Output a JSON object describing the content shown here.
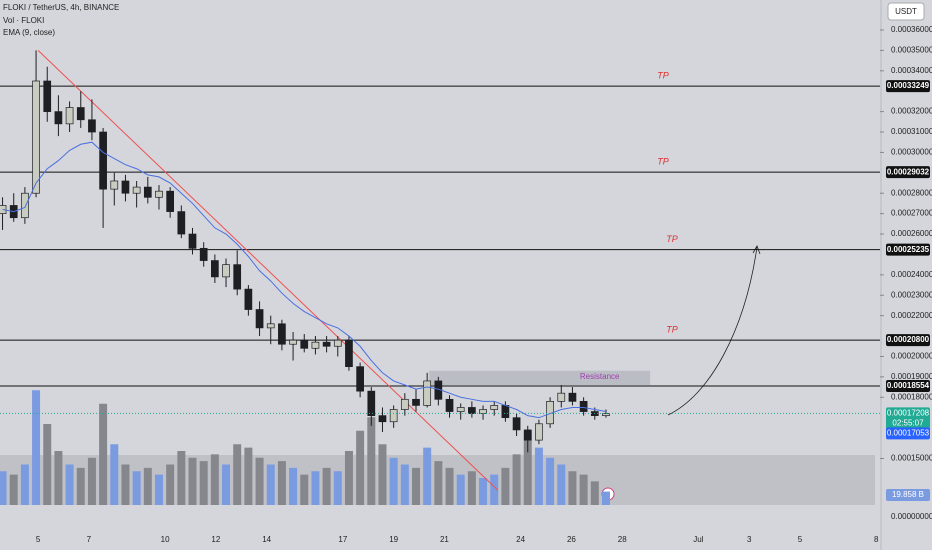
{
  "chart_data": {
    "type": "candlestick",
    "title": "FLOKI / TetherUS, 4h, BINANCE",
    "indicators": [
      "Vol · FLOKI",
      "EMA (9, close)"
    ],
    "currency": "USDT",
    "x": [
      3.6,
      4.04,
      4.48,
      4.92,
      5.36,
      5.8,
      6.24,
      6.68,
      7.12,
      7.56,
      8.0,
      8.44,
      8.88,
      9.32,
      9.76,
      10.2,
      10.64,
      11.08,
      11.52,
      11.96,
      12.4,
      12.84,
      13.28,
      13.72,
      14.16,
      14.6,
      15.04,
      15.48,
      15.92,
      16.36,
      16.8,
      17.24,
      17.68,
      18.12,
      18.56,
      19.0,
      19.44,
      19.88,
      20.32,
      20.76,
      21.2,
      21.64,
      22.08,
      22.52,
      22.96,
      23.4,
      23.84,
      24.28,
      24.72,
      25.16,
      25.6,
      26.04,
      26.48,
      26.92,
      27.36
    ],
    "open": [
      0.00027,
      0.000274,
      0.000268,
      0.00028,
      0.000335,
      0.00032,
      0.000314,
      0.000322,
      0.000316,
      0.00031,
      0.000282,
      0.000286,
      0.00028,
      0.000283,
      0.000278,
      0.000281,
      0.000271,
      0.00026,
      0.000253,
      0.000247,
      0.000239,
      0.000245,
      0.000233,
      0.000223,
      0.000214,
      0.000216,
      0.000206,
      0.000208,
      0.000204,
      0.000207,
      0.000205,
      0.000208,
      0.000195,
      0.000183,
      0.000171,
      0.000168,
      0.000174,
      0.000179,
      0.000176,
      0.000188,
      0.000179,
      0.000173,
      0.000175,
      0.000172,
      0.000174,
      0.000176,
      0.00017,
      0.000164,
      0.000159,
      0.000167,
      0.000178,
      0.000182,
      0.000178,
      0.000173,
      0.000171
    ],
    "high": [
      0.000278,
      0.00028,
      0.000283,
      0.00035,
      0.000342,
      0.000328,
      0.000325,
      0.00033,
      0.000326,
      0.000312,
      0.00029,
      0.000289,
      0.000286,
      0.000288,
      0.000284,
      0.000283,
      0.000274,
      0.000263,
      0.000256,
      0.00025,
      0.000248,
      0.000252,
      0.000235,
      0.000227,
      0.00022,
      0.000218,
      0.000212,
      0.000211,
      0.00021,
      0.00021,
      0.00021,
      0.00021,
      0.000197,
      0.000185,
      0.000175,
      0.000176,
      0.000182,
      0.000184,
      0.000192,
      0.00019,
      0.000181,
      0.000177,
      0.000178,
      0.000176,
      0.000178,
      0.000178,
      0.000172,
      0.000166,
      0.000169,
      0.00018,
      0.000186,
      0.000185,
      0.00018,
      0.000175,
      0.000174
    ],
    "low": [
      0.000262,
      0.000266,
      0.000265,
      0.000278,
      0.000315,
      0.000308,
      0.00031,
      0.000312,
      0.000306,
      0.000263,
      0.000274,
      0.000276,
      0.000273,
      0.000275,
      0.000272,
      0.000268,
      0.000258,
      0.00025,
      0.000244,
      0.000236,
      0.000234,
      0.00023,
      0.00022,
      0.00021,
      0.000206,
      0.000203,
      0.000198,
      0.000202,
      0.000201,
      0.000202,
      0.0002,
      0.000193,
      0.00018,
      0.000166,
      0.000163,
      0.000165,
      0.000171,
      0.000173,
      0.000175,
      0.000176,
      0.00017,
      0.000169,
      0.00017,
      0.000169,
      0.000171,
      0.000168,
      0.000161,
      0.000153,
      0.000157,
      0.000165,
      0.000175,
      0.000176,
      0.000171,
      0.000169,
      0.00017
    ],
    "close": [
      0.000274,
      0.000268,
      0.00028,
      0.000335,
      0.00032,
      0.000314,
      0.000322,
      0.000316,
      0.00031,
      0.000282,
      0.000286,
      0.00028,
      0.000283,
      0.000278,
      0.000281,
      0.000271,
      0.00026,
      0.000253,
      0.000247,
      0.000239,
      0.000245,
      0.000233,
      0.000223,
      0.000214,
      0.000216,
      0.000206,
      0.000208,
      0.000204,
      0.000207,
      0.000205,
      0.000208,
      0.000195,
      0.000183,
      0.000171,
      0.000168,
      0.000174,
      0.000179,
      0.000176,
      0.000188,
      0.000179,
      0.000173,
      0.000175,
      0.000172,
      0.000174,
      0.000176,
      0.00017,
      0.000164,
      0.000159,
      0.000167,
      0.000178,
      0.000182,
      0.000178,
      0.000173,
      0.000171,
      0.000172
    ],
    "ema": [
      0.000272,
      0.000271,
      0.000273,
      0.000285,
      0.000292,
      0.000296,
      0.000301,
      0.000304,
      0.000305,
      0.0003,
      0.000297,
      0.000294,
      0.000292,
      0.000289,
      0.000288,
      0.000285,
      0.00028,
      0.000275,
      0.000269,
      0.000263,
      0.00026,
      0.000255,
      0.000249,
      0.000242,
      0.000237,
      0.000231,
      0.000226,
      0.000222,
      0.000219,
      0.000216,
      0.000214,
      0.00021,
      0.000205,
      0.000198,
      0.000192,
      0.000188,
      0.000186,
      0.000184,
      0.000185,
      0.000184,
      0.000182,
      0.00018,
      0.000179,
      0.000178,
      0.000178,
      0.000176,
      0.000174,
      0.000171,
      0.00017,
      0.000172,
      0.000174,
      0.000175,
      0.000175,
      0.000174,
      0.000173
    ],
    "volume": [
      50,
      45,
      60,
      170,
      120,
      80,
      60,
      55,
      70,
      150,
      90,
      60,
      50,
      55,
      45,
      60,
      80,
      70,
      65,
      75,
      60,
      90,
      85,
      70,
      60,
      65,
      55,
      45,
      50,
      55,
      50,
      80,
      110,
      130,
      90,
      70,
      60,
      55,
      85,
      65,
      55,
      45,
      50,
      40,
      45,
      55,
      75,
      110,
      85,
      70,
      60,
      50,
      45,
      35,
      19.858
    ],
    "volume_ylim": [
      0,
      200
    ],
    "volume_marker": {
      "value": 19.858,
      "label": "19.858 B"
    },
    "bottom_label": "0.00000000",
    "up_color": "#c9ccc0",
    "down_color": "#1e1f22",
    "volume_up_color": "#7b9be0",
    "volume_down_color": "#85878c",
    "ema_color": "#4a6fe0",
    "trendline_color": "#f05050",
    "xlim": [
      3.5,
      38.15
    ],
    "ylim": [
      0.0001272,
      0.0003747
    ],
    "xticks": [
      5,
      7,
      10,
      12,
      14,
      17,
      19,
      21,
      24,
      26,
      28,
      {
        "value": 31,
        "label": "Jul"
      },
      {
        "value": 33,
        "label": "3"
      },
      {
        "value": 35,
        "label": "5"
      },
      {
        "value": 38,
        "label": "8"
      }
    ],
    "yticks": [
      {
        "value": 0.00036,
        "label": "0.00036000"
      },
      {
        "value": 0.00035,
        "label": "0.00035000"
      },
      {
        "value": 0.00034,
        "label": "0.00034000"
      },
      {
        "value": 0.00032,
        "label": "0.00032000"
      },
      {
        "value": 0.00031,
        "label": "0.00031000"
      },
      {
        "value": 0.0003,
        "label": "0.00030000"
      },
      {
        "value": 0.00028,
        "label": "0.00028000"
      },
      {
        "value": 0.00027,
        "label": "0.00027000"
      },
      {
        "value": 0.00026,
        "label": "0.00026000"
      },
      {
        "value": 0.00024,
        "label": "0.00024000"
      },
      {
        "value": 0.00023,
        "label": "0.00023000"
      },
      {
        "value": 0.00022,
        "label": "0.00022000"
      },
      {
        "value": 0.0002,
        "label": "0.00020000"
      },
      {
        "value": 0.00019,
        "label": "0.00019000"
      },
      {
        "value": 0.00018,
        "label": "0.00018000"
      },
      {
        "value": 0.00015,
        "label": "0.00015000"
      }
    ],
    "levels": [
      {
        "value": 0.00033249,
        "label": "0.00033249"
      },
      {
        "value": 0.00029032,
        "label": "0.00029032"
      },
      {
        "value": 0.00025235,
        "label": "0.00025235"
      },
      {
        "value": 0.000208,
        "label": "0.00020800"
      },
      {
        "value": 0.00018554,
        "label": "0.00018554"
      }
    ],
    "tp_labels": [
      "TP",
      "TP",
      "TP",
      "TP"
    ],
    "resistance": {
      "label": "Resistance",
      "x": [
        20.4,
        29.1
      ],
      "y": [
        0.000186,
        0.000193
      ]
    },
    "trendline": {
      "x": [
        5.0,
        23.1
      ],
      "y": [
        0.00035,
        0.0001345
      ]
    },
    "price_markers": [
      {
        "value": 0.00017208,
        "label": "0.00017208",
        "countdown": "02:55:07",
        "color": "#22ab94"
      },
      {
        "value": 0.00017053,
        "label": "0.00017053",
        "color": "#2962ff"
      }
    ]
  }
}
